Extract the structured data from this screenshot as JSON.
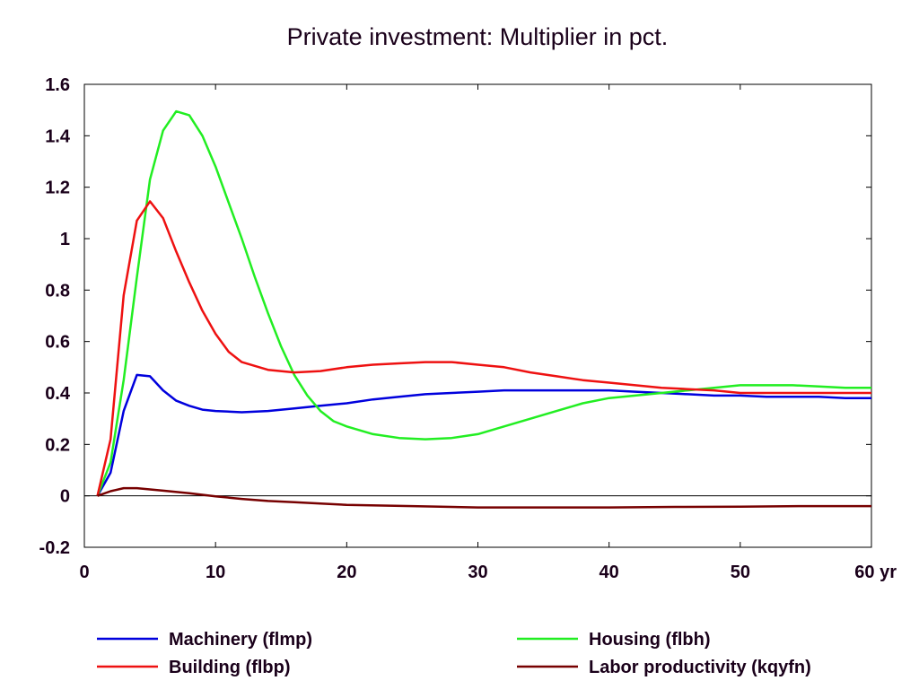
{
  "chart_data": {
    "type": "line",
    "title": "Private investment: Multiplier in pct.",
    "xlabel": "",
    "ylabel": "",
    "x_unit_label": "yr",
    "xlim": [
      0,
      60
    ],
    "ylim": [
      -0.2,
      1.6
    ],
    "x_ticks": [
      0,
      10,
      20,
      30,
      40,
      50,
      60
    ],
    "x_tick_labels": [
      "0",
      "10",
      "20",
      "30",
      "40",
      "50",
      "60 yr"
    ],
    "y_ticks": [
      -0.2,
      0,
      0.2,
      0.4,
      0.6,
      0.8,
      1,
      1.2,
      1.4,
      1.6
    ],
    "y_tick_labels": [
      "-0.2",
      "0",
      "0.2",
      "0.4",
      "0.6",
      "0.8",
      "1",
      "1.2",
      "1.4",
      "1.6"
    ],
    "zero_line": true,
    "grid": false,
    "legend_position": "bottom",
    "series": [
      {
        "name": "Machinery (flmp)",
        "color": "#0000dd",
        "x": [
          1,
          2,
          3,
          4,
          5,
          6,
          7,
          8,
          9,
          10,
          12,
          14,
          16,
          18,
          20,
          22,
          24,
          26,
          28,
          30,
          32,
          34,
          36,
          38,
          40,
          42,
          44,
          46,
          48,
          50,
          52,
          54,
          56,
          58,
          60
        ],
        "y": [
          0.0,
          0.09,
          0.33,
          0.47,
          0.465,
          0.41,
          0.37,
          0.35,
          0.335,
          0.33,
          0.325,
          0.33,
          0.34,
          0.35,
          0.36,
          0.375,
          0.385,
          0.395,
          0.4,
          0.405,
          0.41,
          0.41,
          0.41,
          0.41,
          0.41,
          0.405,
          0.4,
          0.395,
          0.39,
          0.39,
          0.385,
          0.385,
          0.385,
          0.38,
          0.38
        ]
      },
      {
        "name": "Housing (flbh)",
        "color": "#22ee22",
        "x": [
          1,
          2,
          3,
          4,
          5,
          6,
          7,
          8,
          9,
          10,
          11,
          12,
          13,
          14,
          15,
          16,
          17,
          18,
          19,
          20,
          22,
          24,
          26,
          28,
          30,
          32,
          34,
          36,
          38,
          40,
          42,
          44,
          46,
          48,
          50,
          52,
          54,
          56,
          58,
          60
        ],
        "y": [
          0.0,
          0.13,
          0.45,
          0.85,
          1.23,
          1.42,
          1.495,
          1.48,
          1.4,
          1.28,
          1.14,
          1.0,
          0.85,
          0.71,
          0.58,
          0.47,
          0.39,
          0.33,
          0.29,
          0.27,
          0.24,
          0.225,
          0.22,
          0.225,
          0.24,
          0.27,
          0.3,
          0.33,
          0.36,
          0.38,
          0.39,
          0.4,
          0.41,
          0.42,
          0.43,
          0.43,
          0.43,
          0.425,
          0.42,
          0.42
        ]
      },
      {
        "name": "Building (flbp)",
        "color": "#ee1111",
        "x": [
          1,
          2,
          3,
          4,
          5,
          6,
          7,
          8,
          9,
          10,
          11,
          12,
          14,
          16,
          18,
          20,
          22,
          24,
          26,
          28,
          30,
          32,
          34,
          36,
          38,
          40,
          42,
          44,
          46,
          48,
          50,
          52,
          54,
          56,
          58,
          60
        ],
        "y": [
          0.0,
          0.22,
          0.78,
          1.07,
          1.145,
          1.08,
          0.95,
          0.83,
          0.72,
          0.63,
          0.56,
          0.52,
          0.49,
          0.48,
          0.485,
          0.5,
          0.51,
          0.515,
          0.52,
          0.52,
          0.51,
          0.5,
          0.48,
          0.465,
          0.45,
          0.44,
          0.43,
          0.42,
          0.415,
          0.41,
          0.4,
          0.4,
          0.4,
          0.4,
          0.4,
          0.4
        ]
      },
      {
        "name": "Labor productivity (kqyfn)",
        "color": "#770000",
        "x": [
          1,
          2,
          3,
          4,
          5,
          6,
          8,
          10,
          12,
          14,
          16,
          18,
          20,
          25,
          30,
          35,
          40,
          45,
          50,
          55,
          60
        ],
        "y": [
          0.0,
          0.018,
          0.03,
          0.03,
          0.025,
          0.02,
          0.01,
          -0.002,
          -0.012,
          -0.02,
          -0.025,
          -0.03,
          -0.035,
          -0.04,
          -0.045,
          -0.045,
          -0.045,
          -0.043,
          -0.042,
          -0.04,
          -0.04
        ]
      }
    ]
  }
}
